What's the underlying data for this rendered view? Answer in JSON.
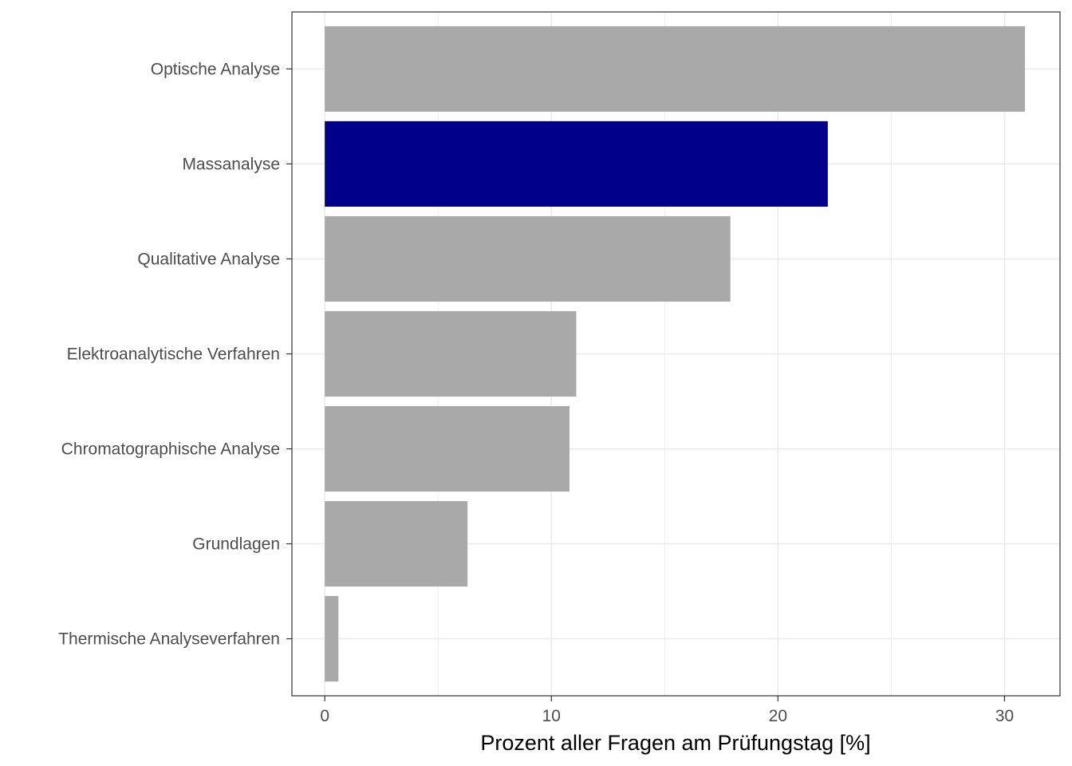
{
  "chart_data": {
    "type": "bar",
    "orientation": "horizontal",
    "categories": [
      "Optische Analyse",
      "Massanalyse",
      "Qualitative Analyse",
      "Elektroanalytische Verfahren",
      "Chromatographische Analyse",
      "Grundlagen",
      "Thermische Analyseverfahren"
    ],
    "values": [
      30.9,
      22.2,
      17.9,
      11.1,
      10.8,
      6.3,
      0.6
    ],
    "highlight_index": 1,
    "colors": {
      "default": "#a9a9a9",
      "highlight": "#00008b",
      "grid": "#ebebeb",
      "panel_border": "#333333"
    },
    "xlabel": "Prozent aller Fragen am Prüfungstag [%]",
    "ylabel": "",
    "xlim": [
      -1.45,
      32.45
    ],
    "x_ticks": [
      0,
      10,
      20,
      30
    ],
    "x_minor_ticks": [
      5,
      15,
      25
    ],
    "grid": true,
    "legend": "none"
  }
}
